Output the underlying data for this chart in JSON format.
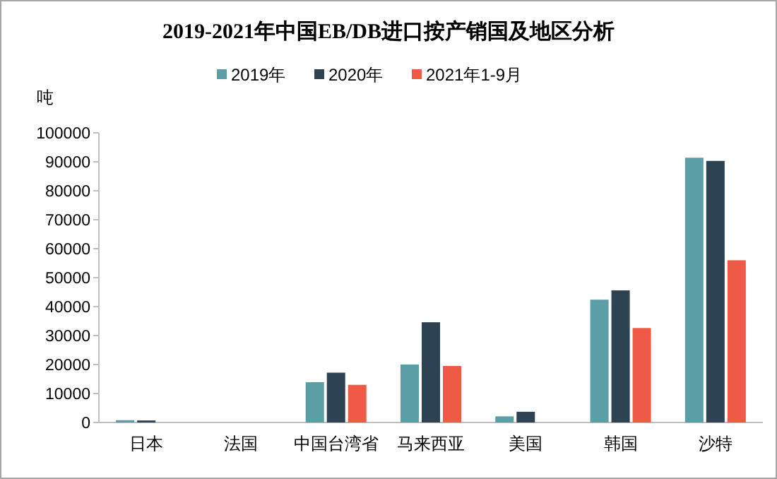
{
  "chart_data": {
    "type": "bar",
    "title": "2019-2021年中国EB/DB进口按产销国及地区分析",
    "ylabel": "吨",
    "categories": [
      "日本",
      "法国",
      "中国台湾省",
      "马来西亚",
      "美国",
      "韩国",
      "沙特"
    ],
    "series": [
      {
        "name": "2019年",
        "color": "#5b9ea6",
        "values": [
          800,
          null,
          13900,
          20000,
          2100,
          42400,
          91400
        ]
      },
      {
        "name": "2020年",
        "color": "#2d4354",
        "values": [
          700,
          null,
          17200,
          34600,
          3700,
          45600,
          90300
        ]
      },
      {
        "name": "2021年1-9月",
        "color": "#ef5a47",
        "values": [
          null,
          null,
          13000,
          19500,
          null,
          32600,
          56000
        ]
      }
    ],
    "ylim": [
      0,
      100000
    ],
    "yticks": [
      0,
      10000,
      20000,
      30000,
      40000,
      50000,
      60000,
      70000,
      80000,
      90000,
      100000
    ],
    "legend": "top"
  }
}
